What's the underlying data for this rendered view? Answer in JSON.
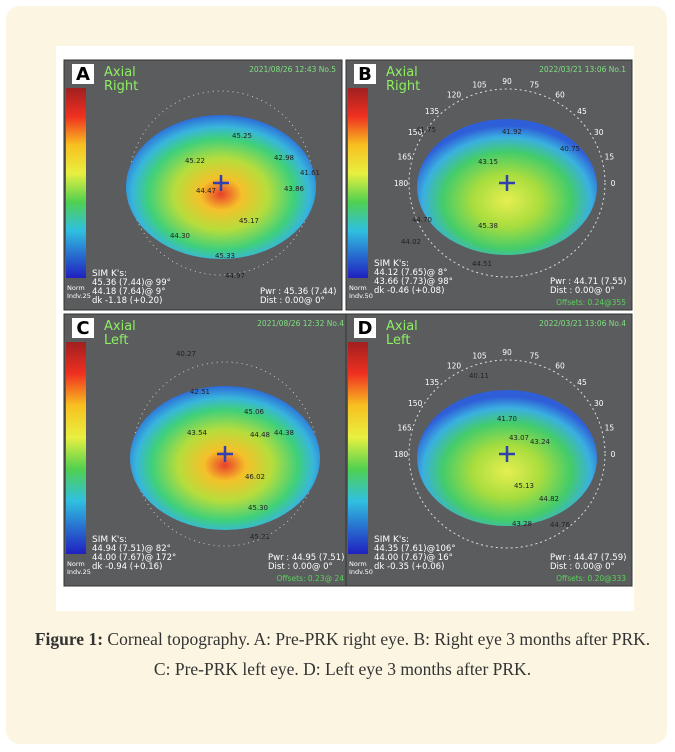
{
  "figure": {
    "panels": [
      {
        "letter": "A",
        "title": "Axial",
        "eye": "Right",
        "stamp": "2021/08/26 12:43 No.5",
        "sim_label": "SIM K's:",
        "sim": [
          "45.36 (7.44)@ 99°",
          "44.18 (7.64)@ 9°",
          "dk -1.18 (+0.20)"
        ],
        "pwr": "Pwr : 45.36 (7.44)",
        "dist": "Dist : 0.00@ 0°",
        "norm": [
          "Norm",
          "Indv.25"
        ],
        "points": [
          "45.25",
          "45.22",
          "42.98",
          "41.61",
          "44.47",
          "43.86",
          "45.17",
          "44.30",
          "45.33",
          "44.97"
        ]
      },
      {
        "letter": "B",
        "title": "Axial",
        "eye": "Right",
        "stamp": "2022/03/21 13:06 No.1",
        "sim_label": "SIM K's:",
        "sim": [
          "44.12 (7.65)@ 8°",
          "43.66 (7.73)@ 98°",
          "dk -0.46 (+0.08)"
        ],
        "pwr": "Pwr : 44.71 (7.55)",
        "dist": "Dist : 0.00@ 0°",
        "norm": [
          "Norm",
          "Indv.50"
        ],
        "offsets": "Offsets: 0.24@355",
        "points": [
          "41.75",
          "41.92",
          "40.75",
          "43.15",
          "44.70",
          "45.38",
          "44.02",
          "44.51"
        ],
        "angles": [
          "90",
          "105",
          "75",
          "120",
          "60",
          "135",
          "45",
          "150",
          "30",
          "165",
          "15",
          "180",
          "0"
        ]
      },
      {
        "letter": "C",
        "title": "Axial",
        "eye": "Left",
        "stamp": "2021/08/26 12:32 No.4",
        "sim_label": "SIM K's:",
        "sim": [
          "44.94 (7.51)@ 82°",
          "44.00 (7.67)@ 172°",
          "dk -0.94 (+0.16)"
        ],
        "pwr": "Pwr : 44.95 (7.51)",
        "dist": "Dist : 0.00@ 0°",
        "norm": [
          "Norm",
          "Indv.25"
        ],
        "offsets": "Offsets: 0.23@ 24",
        "points": [
          "40.27",
          "42.51",
          "45.06",
          "43.54",
          "44.48",
          "44.38",
          "46.02",
          "45.30",
          "45.21"
        ]
      },
      {
        "letter": "D",
        "title": "Axial",
        "eye": "Left",
        "stamp": "2022/03/21 13:06 No.4",
        "sim_label": "SIM K's:",
        "sim": [
          "44.35 (7.61)@106°",
          "44.00 (7.67)@ 16°",
          "dk -0.35 (+0.06)"
        ],
        "pwr": "Pwr : 44.47 (7.59)",
        "dist": "Dist : 0.00@ 0°",
        "norm": [
          "Norm",
          "Indv.50"
        ],
        "offsets": "Offsets: 0.20@333",
        "points": [
          "40.11",
          "41.70",
          "43.07",
          "43.24",
          "45.13",
          "44.82",
          "43.28",
          "44.76"
        ],
        "angles": [
          "90",
          "105",
          "75",
          "120",
          "60",
          "135",
          "45",
          "150",
          "30",
          "165",
          "15",
          "180",
          "0"
        ]
      }
    ]
  },
  "caption": {
    "label": "Figure 1:",
    "text": " Corneal topography. A: Pre-PRK right eye. B: Right eye 3 months after PRK. C: Pre-PRK left eye. D: Left eye 3 months after PRK."
  }
}
